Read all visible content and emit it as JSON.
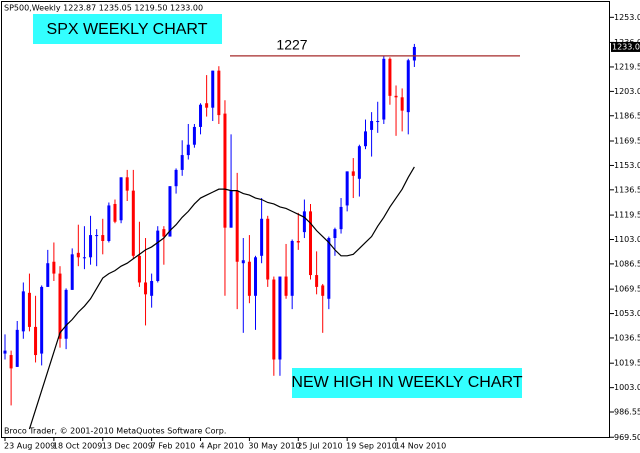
{
  "chart_data": {
    "type": "candlestick",
    "title": "SP500,Weekly  1223.87 1235.05 1219.50 1233.00",
    "footer": "Broco Trader, © 2001-2010 MetaQuotes Software Corp.",
    "annotations": [
      "SPX WEEKLY CHART",
      "NEW HIGH IN WEEKLY CHART"
    ],
    "level": {
      "value": 1227,
      "color": "#a52a2a"
    },
    "last_price": {
      "value": 1233,
      "label": "1233.00"
    },
    "up_color": "#0000ff",
    "down_color": "#ff0000",
    "ma_color": "#000000",
    "categories": [
      "23 Aug 2009",
      null,
      null,
      null,
      null,
      null,
      null,
      null,
      "18 Oct 2009",
      null,
      null,
      null,
      null,
      null,
      null,
      null,
      "13 Dec 2009",
      null,
      null,
      null,
      null,
      null,
      null,
      null,
      "7 Feb 2010",
      null,
      null,
      null,
      null,
      null,
      null,
      null,
      "4 Apr 2010",
      null,
      null,
      null,
      null,
      null,
      null,
      null,
      "30 May 2010",
      null,
      null,
      null,
      null,
      null,
      null,
      null,
      "25 Jul 2010",
      null,
      null,
      null,
      null,
      null,
      null,
      null,
      "19 Sep 2010",
      null,
      null,
      null,
      null,
      null,
      null,
      null,
      "14 Nov 2010",
      null,
      null,
      null
    ],
    "open": [
      1026,
      1025,
      1017,
      1041,
      1067,
      1044,
      1026,
      1071,
      1088,
      1080,
      1036,
      1069,
      1094,
      1091,
      1091,
      1106,
      1106,
      1102,
      1127,
      1116,
      1145,
      1136,
      1092,
      1074,
      1065,
      1075,
      1110,
      1105,
      1139,
      1150,
      1160,
      1167,
      1179,
      1195,
      1192,
      1217,
      1188,
      1111,
      1136,
      1087,
      1088,
      1065,
      1092,
      1117,
      1076,
      1022,
      1078,
      1065,
      1102,
      1108,
      1122,
      1079,
      1072,
      1063,
      1104,
      1110,
      1126,
      1149,
      1144,
      1166,
      1177,
      1183,
      1184,
      1225,
      1200,
      1199,
      1189,
      1223.87
    ],
    "high": [
      1039,
      1028,
      1048,
      1074,
      1080,
      1065,
      1072,
      1096,
      1101,
      1085,
      1070,
      1097,
      1113,
      1112,
      1119,
      1110,
      1117,
      1128,
      1130,
      1145,
      1150,
      1150,
      1115,
      1104,
      1080,
      1112,
      1112,
      1139,
      1151,
      1170,
      1181,
      1181,
      1195,
      1214,
      1217,
      1220,
      1197,
      1174,
      1148,
      1104,
      1106,
      1092,
      1131,
      1119,
      1078,
      1078,
      1100,
      1103,
      1121,
      1130,
      1127,
      1095,
      1073,
      1105,
      1111,
      1131,
      1149,
      1158,
      1167,
      1184,
      1189,
      1196,
      1227,
      1226,
      1207,
      1205,
      1225,
      1235.05
    ],
    "low": [
      1022,
      991,
      1017,
      1036,
      1041,
      1020,
      1018,
      1071,
      1075,
      1030,
      1029,
      1069,
      1085,
      1083,
      1086,
      1085,
      1093,
      1101,
      1114,
      1114,
      1129,
      1090,
      1071,
      1045,
      1057,
      1074,
      1086,
      1105,
      1134,
      1146,
      1157,
      1165,
      1174,
      1186,
      1183,
      1181,
      1065,
      1111,
      1056,
      1040,
      1060,
      1042,
      1087,
      1071,
      1011,
      1011,
      1063,
      1056,
      1096,
      1104,
      1076,
      1066,
      1040,
      1056,
      1092,
      1107,
      1122,
      1131,
      1132,
      1164,
      1159,
      1175,
      1181,
      1194,
      1173,
      1176,
      1174,
      1219.5
    ],
    "close": [
      1028,
      1016,
      1042,
      1068,
      1044,
      1025,
      1071,
      1087,
      1080,
      1036,
      1069,
      1093,
      1091,
      1091,
      1106,
      1106,
      1102,
      1126,
      1115,
      1145,
      1136,
      1092,
      1074,
      1066,
      1075,
      1109,
      1105,
      1139,
      1150,
      1160,
      1167,
      1179,
      1194,
      1192,
      1217,
      1187,
      1111,
      1136,
      1088,
      1089,
      1065,
      1091,
      1117,
      1076,
      1022,
      1078,
      1065,
      1102,
      1101,
      1122,
      1079,
      1071,
      1065,
      1104,
      1110,
      1125,
      1149,
      1146,
      1166,
      1176,
      1183,
      1183,
      1225,
      1200,
      1199,
      1190,
      1224,
      1233
    ],
    "moving_average": [
      null,
      null,
      null,
      null,
      975,
      988,
      1001,
      1014,
      1027,
      1040,
      1045,
      1049,
      1054,
      1058,
      1063,
      1070,
      1077,
      1080,
      1082,
      1085,
      1087,
      1090,
      1093,
      1096,
      1098,
      1101,
      1104,
      1109,
      1113,
      1118,
      1122,
      1127,
      1131,
      1133,
      1135,
      1137,
      1137,
      1136,
      1136,
      1134,
      1133,
      1131,
      1130,
      1128,
      1127,
      1125,
      1124,
      1122,
      1120,
      1118,
      1114,
      1109,
      1105,
      1101,
      1096,
      1092,
      1092,
      1093,
      1097,
      1101,
      1105,
      1112,
      1118,
      1125,
      1131,
      1137,
      1145,
      1152
    ],
    "ylim": [
      969,
      1262
    ],
    "yticks": [
      {
        "value": 1253,
        "label": "1253.00"
      },
      {
        "value": 1236.05,
        "label": "1236.05"
      },
      {
        "value": 1219.5,
        "label": "1219.50"
      },
      {
        "value": 1203,
        "label": "1203.00"
      },
      {
        "value": 1186.55,
        "label": "1186.55"
      },
      {
        "value": 1169.5,
        "label": "1169.50"
      },
      {
        "value": 1153,
        "label": "1153.00"
      },
      {
        "value": 1136.55,
        "label": "1136.55"
      },
      {
        "value": 1119.5,
        "label": "1119.50"
      },
      {
        "value": 1103,
        "label": "1103.00"
      },
      {
        "value": 1086.55,
        "label": "1086.55"
      },
      {
        "value": 1069.5,
        "label": "1069.50"
      },
      {
        "value": 1053,
        "label": "1053.00"
      },
      {
        "value": 1036.55,
        "label": "1036.55"
      },
      {
        "value": 1019.5,
        "label": "1019.50"
      },
      {
        "value": 1003,
        "label": "1003.00"
      },
      {
        "value": 986.55,
        "label": "986.55"
      },
      {
        "value": 969.5,
        "label": "969.50"
      }
    ]
  }
}
